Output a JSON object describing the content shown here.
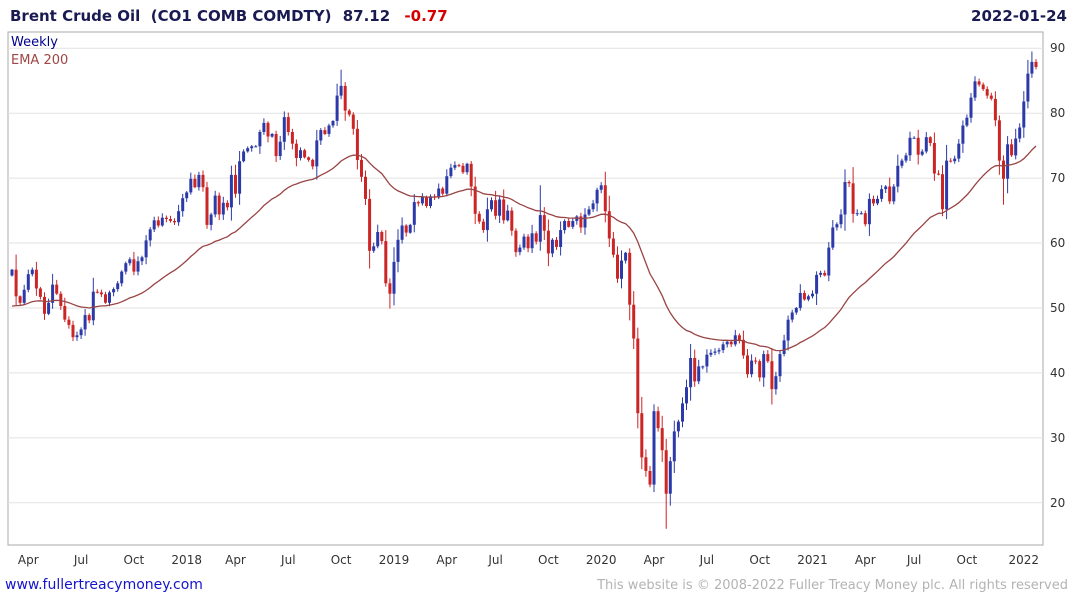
{
  "header": {
    "title": "Brent Crude Oil  (CO1 COMB COMDTY)",
    "last_price": "87.12",
    "change": "-0.77",
    "date": "2022-01-24"
  },
  "legend": {
    "series": "Weekly",
    "ema": "EMA 200"
  },
  "footer": {
    "link": "www.fullertreacymoney.com",
    "copyright": "This website is © 2008-2022 Fuller Treacy Money plc. All rights reserved"
  },
  "chart_data": {
    "type": "candlestick",
    "title": "Brent Crude Oil (CO1 COMB COMDTY)",
    "interval": "Weekly",
    "overlay": "EMA 200",
    "ylim": [
      13.5,
      92.5
    ],
    "y_ticks": [
      20,
      30,
      40,
      50,
      60,
      70,
      80,
      90
    ],
    "x_ticks": [
      {
        "label": "Apr",
        "i": 4
      },
      {
        "label": "Jul",
        "i": 17
      },
      {
        "label": "Oct",
        "i": 30
      },
      {
        "label": "2018",
        "i": 43
      },
      {
        "label": "Apr",
        "i": 55
      },
      {
        "label": "Jul",
        "i": 68
      },
      {
        "label": "Oct",
        "i": 81
      },
      {
        "label": "2019",
        "i": 94
      },
      {
        "label": "Apr",
        "i": 107
      },
      {
        "label": "Jul",
        "i": 119
      },
      {
        "label": "Oct",
        "i": 132
      },
      {
        "label": "2020",
        "i": 145
      },
      {
        "label": "Apr",
        "i": 158
      },
      {
        "label": "Jul",
        "i": 171
      },
      {
        "label": "Oct",
        "i": 184
      },
      {
        "label": "2021",
        "i": 197
      },
      {
        "label": "Apr",
        "i": 210
      },
      {
        "label": "Jul",
        "i": 222
      },
      {
        "label": "Oct",
        "i": 235
      },
      {
        "label": "2022",
        "i": 249
      }
    ],
    "first_open": 55.0,
    "closes": [
      55.9,
      51.8,
      50.8,
      52.8,
      55.2,
      55.9,
      53.0,
      51.7,
      49.1,
      50.8,
      53.6,
      52.2,
      50.3,
      48.2,
      47.4,
      45.5,
      45.8,
      46.7,
      48.9,
      48.1,
      52.5,
      52.4,
      52.1,
      50.8,
      52.4,
      52.9,
      53.8,
      55.6,
      56.9,
      57.5,
      55.6,
      57.2,
      57.8,
      60.4,
      62.1,
      63.5,
      62.7,
      63.9,
      63.7,
      63.4,
      63.2,
      64.9,
      66.9,
      67.8,
      69.9,
      68.6,
      70.5,
      68.6,
      62.8,
      64.4,
      67.3,
      64.4,
      66.2,
      65.5,
      70.5,
      67.6,
      72.6,
      74.1,
      74.6,
      74.9,
      74.9,
      77.1,
      78.5,
      76.4,
      76.8,
      73.4,
      75.6,
      79.4,
      77.1,
      75.3,
      73.1,
      74.3,
      73.2,
      72.8,
      71.8,
      75.8,
      77.4,
      76.8,
      78.1,
      78.8,
      82.7,
      84.2,
      80.4,
      79.8,
      77.6,
      72.8,
      70.2,
      66.8,
      58.8,
      59.5,
      61.7,
      60.3,
      53.8,
      52.2,
      57.1,
      60.5,
      62.7,
      61.6,
      62.8,
      66.3,
      66.1,
      67.1,
      65.7,
      67.2,
      67.0,
      68.4,
      67.6,
      70.3,
      71.6,
      72.0,
      71.9,
      70.9,
      72.2,
      68.7,
      64.5,
      63.3,
      62.0,
      65.2,
      66.6,
      64.2,
      66.7,
      63.5,
      65.0,
      61.9,
      58.6,
      59.3,
      61.0,
      59.2,
      61.5,
      60.2,
      64.3,
      61.9,
      58.4,
      60.5,
      59.4,
      62.0,
      63.4,
      62.5,
      63.4,
      64.1,
      62.4,
      64.4,
      65.2,
      66.1,
      68.2,
      68.9,
      64.9,
      60.7,
      58.2,
      54.5,
      57.3,
      58.5,
      50.5,
      45.3,
      33.8,
      27.0,
      24.9,
      22.8,
      34.1,
      31.5,
      28.1,
      21.4,
      26.4,
      31.0,
      32.5,
      35.3,
      37.8,
      42.3,
      38.7,
      41.0,
      41.0,
      42.8,
      43.1,
      43.3,
      43.5,
      44.4,
      44.8,
      44.4,
      45.8,
      45.1,
      42.7,
      39.8,
      41.9,
      41.8,
      39.3,
      42.9,
      41.8,
      37.5,
      39.5,
      42.9,
      45.0,
      48.2,
      49.3,
      50.0,
      52.3,
      51.3,
      51.8,
      52.2,
      55.1,
      55.4,
      55.0,
      59.3,
      62.4,
      62.9,
      64.4,
      69.4,
      69.2,
      64.5,
      64.6,
      64.6,
      62.9,
      66.8,
      66.1,
      66.8,
      68.3,
      68.7,
      66.4,
      68.7,
      71.9,
      72.7,
      73.5,
      76.2,
      76.2,
      73.6,
      74.1,
      76.3,
      75.4,
      70.7,
      70.6,
      65.2,
      72.7,
      72.6,
      73.0,
      75.3,
      78.1,
      79.3,
      82.4,
      84.9,
      84.4,
      83.7,
      82.7,
      82.2,
      78.9,
      72.7,
      69.9,
      75.2,
      73.5,
      76.1,
      77.8,
      81.8,
      86.1,
      87.9,
      87.12
    ],
    "special_wicks": [
      {
        "i": 81,
        "high": 86.7
      },
      {
        "i": 93,
        "low": 49.9
      },
      {
        "i": 130,
        "high": 68.9
      },
      {
        "i": 161,
        "low": 16.0
      },
      {
        "i": 244,
        "low": 65.9
      },
      {
        "i": 251,
        "high": 89.5
      }
    ],
    "ema_period": 40,
    "ema_seed": 50.0,
    "colors": {
      "up": "#2b3aa8",
      "down": "#cc2525",
      "ema": "#994444",
      "grid": "#e2e2e2",
      "border": "#aaaaaa",
      "title": "#1a1a52",
      "change_negative": "#d40000",
      "link": "#1414cc"
    }
  }
}
